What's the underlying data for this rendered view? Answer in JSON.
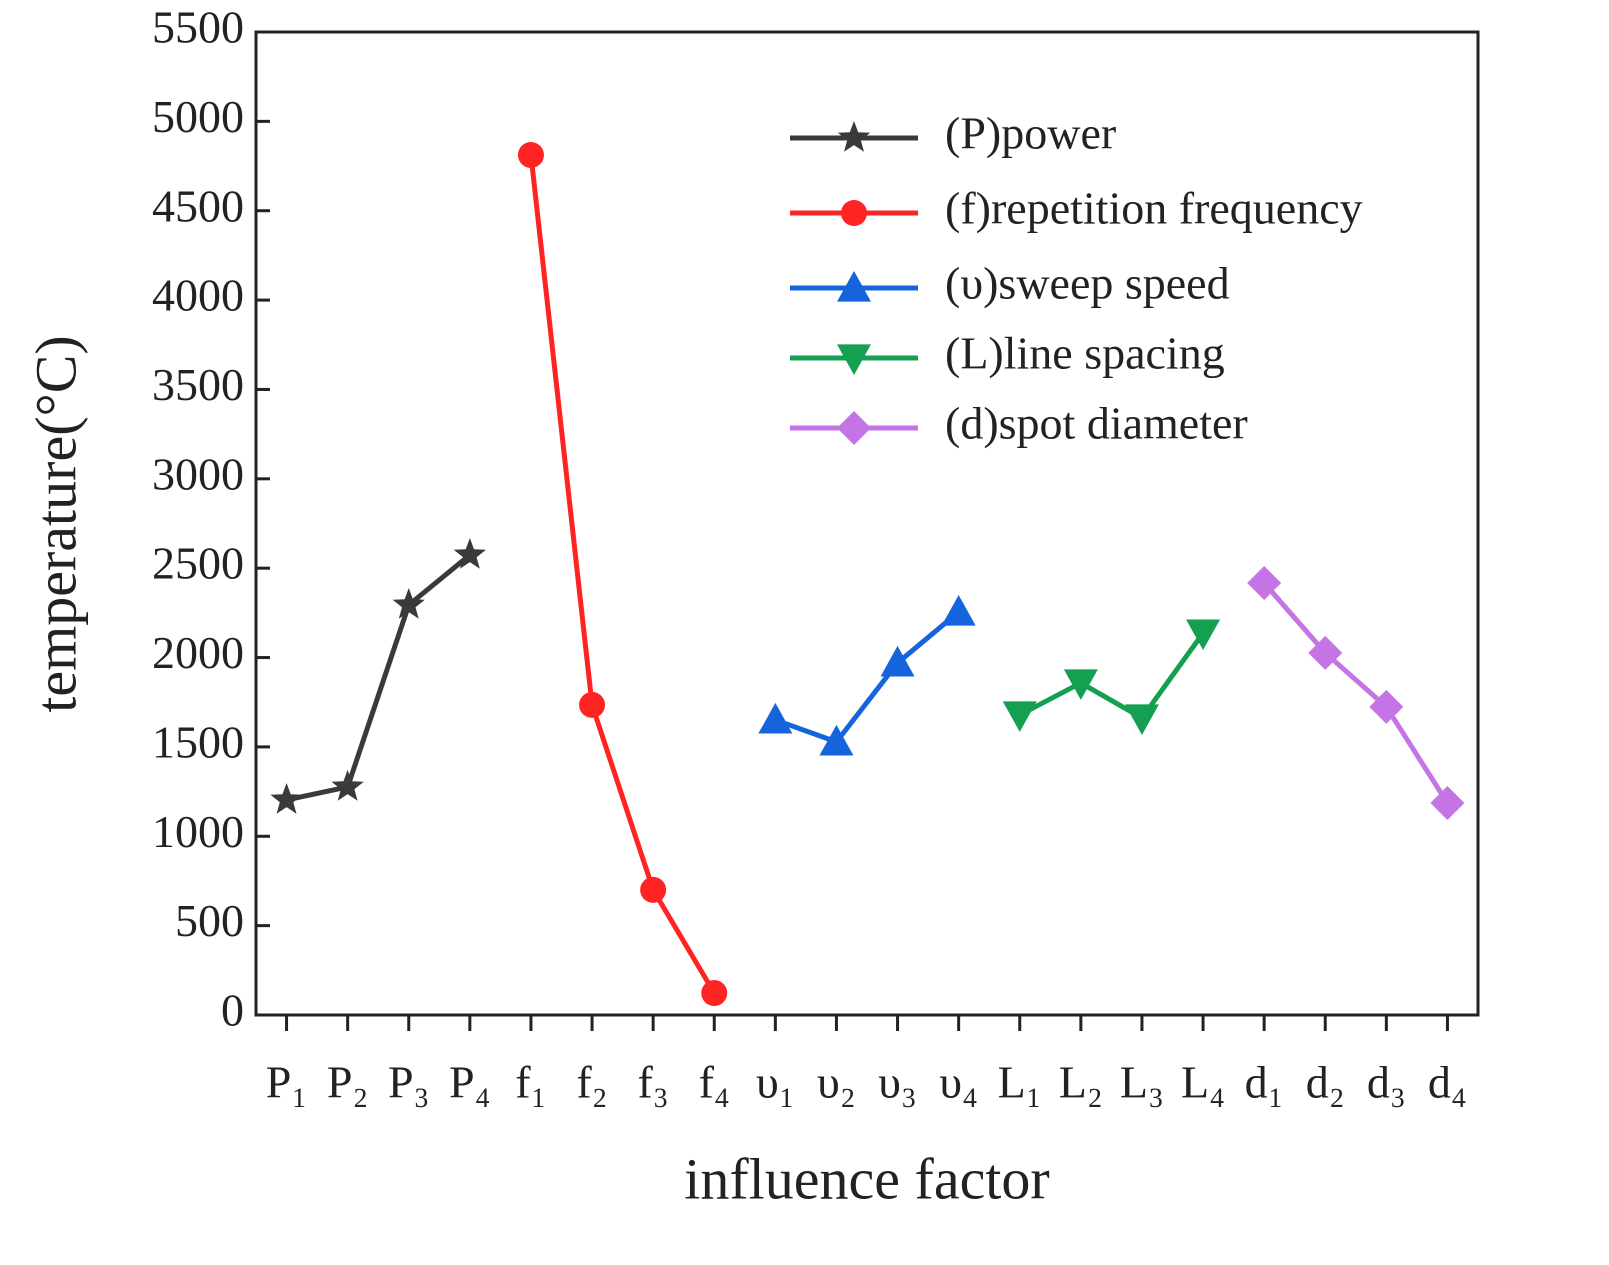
{
  "chart_data": {
    "type": "line",
    "xlabel": "influence factor",
    "ylabel": "temperature(°C)",
    "categories": [
      "P₁",
      "P₂",
      "P₃",
      "P₄",
      "f₁",
      "f₂",
      "f₃",
      "f₄",
      "υ₁",
      "υ₂",
      "υ₃",
      "υ₄",
      "L₁",
      "L₂",
      "L₃",
      "L₄",
      "d₁",
      "d₂",
      "d₃",
      "d₄"
    ],
    "series": [
      {
        "name": "(P)power",
        "color": "#3a3a3a",
        "marker": "star",
        "values": [
          1203,
          1276,
          2294,
          2574,
          null,
          null,
          null,
          null,
          null,
          null,
          null,
          null,
          null,
          null,
          null,
          null,
          null,
          null,
          null,
          null
        ]
      },
      {
        "name": "(f)repetition frequency",
        "color": "#ff2424",
        "marker": "circle",
        "values": [
          null,
          null,
          null,
          null,
          4812,
          1735,
          700,
          123,
          null,
          null,
          null,
          null,
          null,
          null,
          null,
          null,
          null,
          null,
          null,
          null
        ]
      },
      {
        "name": "(υ)sweep speed",
        "color": "#1464dc",
        "marker": "triangle-up",
        "values": [
          null,
          null,
          null,
          null,
          null,
          null,
          null,
          null,
          1651,
          1528,
          1970,
          2255,
          null,
          null,
          null,
          null,
          null,
          null,
          null,
          null
        ]
      },
      {
        "name": "(L)line spacing",
        "color": "#14a050",
        "marker": "triangle-down",
        "values": [
          null,
          null,
          null,
          null,
          null,
          null,
          null,
          null,
          null,
          null,
          null,
          null,
          1679,
          1858,
          1662,
          2137,
          null,
          null,
          null,
          null
        ]
      },
      {
        "name": "(d)spot diameter",
        "color": "#c474e4",
        "marker": "diamond",
        "values": [
          null,
          null,
          null,
          null,
          null,
          null,
          null,
          null,
          null,
          null,
          null,
          null,
          null,
          null,
          null,
          null,
          2417,
          2026,
          1724,
          1186
        ]
      }
    ],
    "ylim": [
      0,
      5500
    ],
    "yticks": [
      0,
      500,
      1000,
      1500,
      2000,
      2500,
      3000,
      3500,
      4000,
      4500,
      5000,
      5500
    ],
    "legend": "upper right"
  }
}
